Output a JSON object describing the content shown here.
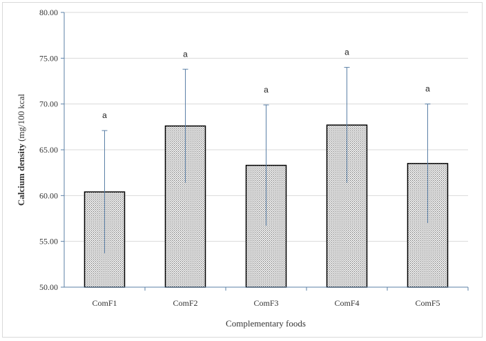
{
  "chart_data": {
    "type": "bar",
    "title": "",
    "xlabel": "Complementary foods",
    "ylabel": {
      "bold": "Calcium density",
      "normal": " (mg/100 kcal"
    },
    "categories": [
      "ComF1",
      "ComF2",
      "ComF3",
      "ComF4",
      "ComF5"
    ],
    "values": [
      60.4,
      67.6,
      63.3,
      67.7,
      63.5
    ],
    "error_upper": [
      67.1,
      73.8,
      69.9,
      74.0,
      70.0
    ],
    "error_lower": [
      53.7,
      61.4,
      56.7,
      61.4,
      57.0
    ],
    "significance": [
      "a",
      "a",
      "a",
      "a",
      "a"
    ],
    "ylim": [
      50,
      80
    ],
    "yticks": [
      "50.00",
      "55.00",
      "60.00",
      "65.00",
      "70.00",
      "75.00",
      "80.00"
    ],
    "grid": true,
    "legend": "none",
    "colors": {
      "bar_fill": "#ffffff",
      "bar_pattern": "#6b6b6b",
      "bar_border": "#000000",
      "axis": "#5a7fa6",
      "grid": "#d9d9d9",
      "error_bar": "#5a7fa6"
    }
  }
}
